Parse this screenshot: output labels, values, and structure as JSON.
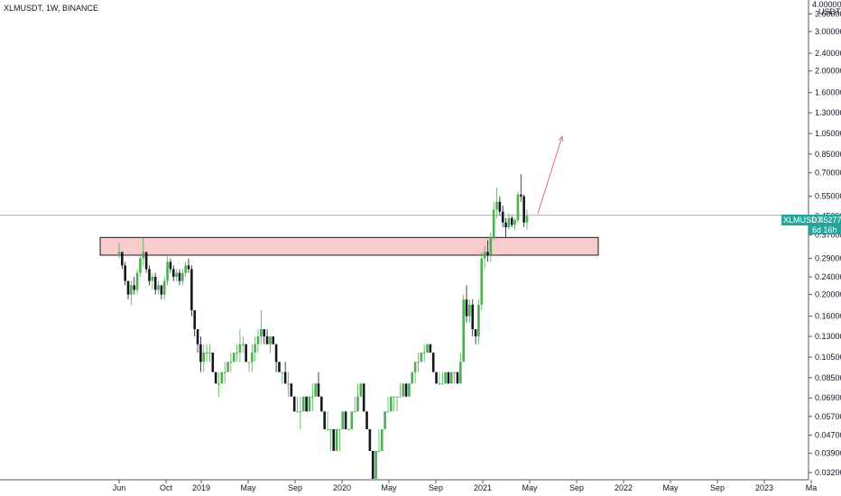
{
  "header": {
    "title": "XLMUSDT, 1W, BINANCE"
  },
  "axis": {
    "currency": "USDT",
    "top_tick": "4.00000"
  },
  "price_badge": {
    "symbol": "XLMUSDT",
    "price": "0.45277",
    "countdown": "6d 16h",
    "color": "#26a69a"
  },
  "colors": {
    "up": "#4caf50",
    "down": "#131722",
    "zone_fill": "#f8cccc",
    "zone_border": "#1a1a1a",
    "arrow": "#e57373",
    "price_line": "#b0b0b0"
  },
  "chart_data": {
    "type": "candlestick",
    "title": "XLMUSDT, 1W, BINANCE",
    "yscale": "log",
    "ylim": [
      0.03,
      4.0
    ],
    "y_ticks": [
      "3.60000",
      "3.00000",
      "2.40000",
      "2.00000",
      "1.60000",
      "1.30000",
      "1.05000",
      "0.85000",
      "0.70000",
      "0.55000",
      "0.45000",
      "0.37000",
      "0.29000",
      "0.24000",
      "0.20000",
      "0.16000",
      "0.13000",
      "0.10500",
      "0.08500",
      "0.06900",
      "0.05700",
      "0.04700",
      "0.03900",
      "0.03200"
    ],
    "x_ticks": [
      "Jun",
      "Oct",
      "2019",
      "May",
      "Sep",
      "2020",
      "May",
      "Sep",
      "2021",
      "May",
      "Sep",
      "2022",
      "May",
      "Sep",
      "2023",
      "Ma"
    ],
    "x_tick_months": [
      5,
      9,
      12,
      16,
      20,
      24,
      28,
      32,
      36,
      40,
      44,
      48,
      52,
      56,
      60,
      64
    ],
    "x_range_months": [
      4.2,
      64.7
    ],
    "last_price": 0.45277,
    "resistance_zone": {
      "low": 0.3,
      "high": 0.36,
      "from": "2018-05",
      "to": "2021-11"
    },
    "arrow": {
      "from_month": "2021-05",
      "from_price": 0.46,
      "to_month": "2021-07",
      "to_price": 1.02
    },
    "weekly_candles_ohlc": [
      [
        0.3,
        0.34,
        0.29,
        0.31
      ],
      [
        0.31,
        0.31,
        0.26,
        0.27
      ],
      [
        0.27,
        0.28,
        0.22,
        0.23
      ],
      [
        0.23,
        0.23,
        0.19,
        0.2
      ],
      [
        0.2,
        0.23,
        0.18,
        0.22
      ],
      [
        0.22,
        0.24,
        0.2,
        0.21
      ],
      [
        0.21,
        0.26,
        0.2,
        0.25
      ],
      [
        0.25,
        0.3,
        0.24,
        0.29
      ],
      [
        0.29,
        0.36,
        0.27,
        0.31
      ],
      [
        0.31,
        0.31,
        0.25,
        0.26
      ],
      [
        0.26,
        0.27,
        0.22,
        0.23
      ],
      [
        0.23,
        0.25,
        0.21,
        0.24
      ],
      [
        0.24,
        0.25,
        0.2,
        0.21
      ],
      [
        0.21,
        0.23,
        0.2,
        0.22
      ],
      [
        0.22,
        0.22,
        0.19,
        0.2
      ],
      [
        0.2,
        0.24,
        0.19,
        0.23
      ],
      [
        0.23,
        0.3,
        0.22,
        0.28
      ],
      [
        0.28,
        0.29,
        0.25,
        0.26
      ],
      [
        0.26,
        0.27,
        0.23,
        0.24
      ],
      [
        0.24,
        0.26,
        0.23,
        0.25
      ],
      [
        0.25,
        0.26,
        0.22,
        0.23
      ],
      [
        0.23,
        0.26,
        0.22,
        0.25
      ],
      [
        0.25,
        0.28,
        0.24,
        0.27
      ],
      [
        0.27,
        0.29,
        0.25,
        0.26
      ],
      [
        0.26,
        0.27,
        0.16,
        0.17
      ],
      [
        0.17,
        0.17,
        0.13,
        0.14
      ],
      [
        0.14,
        0.14,
        0.11,
        0.12
      ],
      [
        0.12,
        0.13,
        0.09,
        0.1
      ],
      [
        0.1,
        0.12,
        0.09,
        0.11
      ],
      [
        0.11,
        0.12,
        0.1,
        0.11
      ],
      [
        0.11,
        0.12,
        0.1,
        0.11
      ],
      [
        0.11,
        0.11,
        0.09,
        0.09
      ],
      [
        0.09,
        0.09,
        0.08,
        0.08
      ],
      [
        0.08,
        0.09,
        0.07,
        0.08
      ],
      [
        0.08,
        0.09,
        0.08,
        0.09
      ],
      [
        0.09,
        0.1,
        0.08,
        0.09
      ],
      [
        0.09,
        0.1,
        0.09,
        0.1
      ],
      [
        0.1,
        0.11,
        0.09,
        0.1
      ],
      [
        0.1,
        0.11,
        0.1,
        0.11
      ],
      [
        0.11,
        0.12,
        0.1,
        0.11
      ],
      [
        0.11,
        0.14,
        0.1,
        0.12
      ],
      [
        0.12,
        0.13,
        0.11,
        0.12
      ],
      [
        0.12,
        0.12,
        0.1,
        0.1
      ],
      [
        0.1,
        0.1,
        0.09,
        0.1
      ],
      [
        0.1,
        0.12,
        0.09,
        0.11
      ],
      [
        0.11,
        0.13,
        0.1,
        0.12
      ],
      [
        0.12,
        0.14,
        0.11,
        0.13
      ],
      [
        0.13,
        0.17,
        0.12,
        0.14
      ],
      [
        0.14,
        0.14,
        0.12,
        0.13
      ],
      [
        0.13,
        0.14,
        0.12,
        0.12
      ],
      [
        0.12,
        0.13,
        0.11,
        0.13
      ],
      [
        0.13,
        0.13,
        0.12,
        0.12
      ],
      [
        0.12,
        0.12,
        0.09,
        0.1
      ],
      [
        0.1,
        0.1,
        0.09,
        0.09
      ],
      [
        0.09,
        0.09,
        0.08,
        0.09
      ],
      [
        0.09,
        0.1,
        0.08,
        0.08
      ],
      [
        0.08,
        0.09,
        0.07,
        0.08
      ],
      [
        0.08,
        0.08,
        0.07,
        0.07
      ],
      [
        0.07,
        0.07,
        0.06,
        0.06
      ],
      [
        0.06,
        0.07,
        0.06,
        0.06
      ],
      [
        0.06,
        0.07,
        0.05,
        0.06
      ],
      [
        0.06,
        0.07,
        0.06,
        0.07
      ],
      [
        0.07,
        0.07,
        0.06,
        0.06
      ],
      [
        0.06,
        0.07,
        0.06,
        0.07
      ],
      [
        0.07,
        0.08,
        0.06,
        0.07
      ],
      [
        0.07,
        0.08,
        0.07,
        0.08
      ],
      [
        0.08,
        0.09,
        0.07,
        0.07
      ],
      [
        0.07,
        0.07,
        0.06,
        0.06
      ],
      [
        0.06,
        0.06,
        0.05,
        0.05
      ],
      [
        0.05,
        0.06,
        0.05,
        0.05
      ],
      [
        0.05,
        0.05,
        0.04,
        0.05
      ],
      [
        0.05,
        0.05,
        0.04,
        0.04
      ],
      [
        0.04,
        0.05,
        0.04,
        0.05
      ],
      [
        0.05,
        0.05,
        0.04,
        0.05
      ],
      [
        0.05,
        0.06,
        0.05,
        0.06
      ],
      [
        0.06,
        0.06,
        0.05,
        0.05
      ],
      [
        0.05,
        0.05,
        0.05,
        0.05
      ],
      [
        0.05,
        0.06,
        0.05,
        0.06
      ],
      [
        0.06,
        0.07,
        0.06,
        0.06
      ],
      [
        0.06,
        0.08,
        0.06,
        0.07
      ],
      [
        0.07,
        0.08,
        0.07,
        0.08
      ],
      [
        0.08,
        0.08,
        0.06,
        0.06
      ],
      [
        0.06,
        0.06,
        0.05,
        0.05
      ],
      [
        0.05,
        0.05,
        0.04,
        0.04
      ],
      [
        0.04,
        0.04,
        0.03,
        0.03
      ],
      [
        0.03,
        0.04,
        0.03,
        0.04
      ],
      [
        0.04,
        0.05,
        0.04,
        0.04
      ],
      [
        0.04,
        0.05,
        0.04,
        0.05
      ],
      [
        0.05,
        0.06,
        0.05,
        0.06
      ],
      [
        0.06,
        0.07,
        0.06,
        0.06
      ],
      [
        0.06,
        0.07,
        0.06,
        0.07
      ],
      [
        0.07,
        0.07,
        0.06,
        0.07
      ],
      [
        0.07,
        0.07,
        0.06,
        0.07
      ],
      [
        0.07,
        0.08,
        0.07,
        0.07
      ],
      [
        0.07,
        0.08,
        0.07,
        0.08
      ],
      [
        0.08,
        0.08,
        0.07,
        0.07
      ],
      [
        0.07,
        0.08,
        0.07,
        0.08
      ],
      [
        0.08,
        0.09,
        0.08,
        0.09
      ],
      [
        0.09,
        0.1,
        0.08,
        0.1
      ],
      [
        0.1,
        0.11,
        0.09,
        0.1
      ],
      [
        0.1,
        0.11,
        0.1,
        0.11
      ],
      [
        0.11,
        0.12,
        0.1,
        0.11
      ],
      [
        0.11,
        0.12,
        0.11,
        0.12
      ],
      [
        0.12,
        0.12,
        0.11,
        0.11
      ],
      [
        0.11,
        0.11,
        0.09,
        0.09
      ],
      [
        0.09,
        0.09,
        0.08,
        0.08
      ],
      [
        0.08,
        0.09,
        0.08,
        0.08
      ],
      [
        0.08,
        0.09,
        0.08,
        0.08
      ],
      [
        0.08,
        0.09,
        0.08,
        0.09
      ],
      [
        0.09,
        0.09,
        0.08,
        0.08
      ],
      [
        0.08,
        0.09,
        0.08,
        0.09
      ],
      [
        0.09,
        0.09,
        0.08,
        0.09
      ],
      [
        0.09,
        0.09,
        0.08,
        0.08
      ],
      [
        0.08,
        0.11,
        0.08,
        0.1
      ],
      [
        0.1,
        0.2,
        0.1,
        0.19
      ],
      [
        0.19,
        0.22,
        0.15,
        0.16
      ],
      [
        0.16,
        0.19,
        0.15,
        0.18
      ],
      [
        0.18,
        0.19,
        0.13,
        0.14
      ],
      [
        0.14,
        0.14,
        0.12,
        0.13
      ],
      [
        0.13,
        0.19,
        0.12,
        0.18
      ],
      [
        0.18,
        0.31,
        0.17,
        0.29
      ],
      [
        0.29,
        0.33,
        0.26,
        0.31
      ],
      [
        0.31,
        0.35,
        0.28,
        0.3
      ],
      [
        0.3,
        0.38,
        0.28,
        0.36
      ],
      [
        0.36,
        0.52,
        0.35,
        0.48
      ],
      [
        0.48,
        0.6,
        0.44,
        0.52
      ],
      [
        0.52,
        0.55,
        0.45,
        0.47
      ],
      [
        0.47,
        0.5,
        0.4,
        0.42
      ],
      [
        0.42,
        0.44,
        0.36,
        0.4
      ],
      [
        0.4,
        0.46,
        0.39,
        0.44
      ],
      [
        0.44,
        0.45,
        0.4,
        0.41
      ],
      [
        0.41,
        0.44,
        0.39,
        0.43
      ],
      [
        0.43,
        0.58,
        0.42,
        0.56
      ],
      [
        0.56,
        0.69,
        0.52,
        0.55
      ],
      [
        0.55,
        0.56,
        0.4,
        0.42
      ],
      [
        0.42,
        0.48,
        0.39,
        0.45
      ]
    ]
  }
}
